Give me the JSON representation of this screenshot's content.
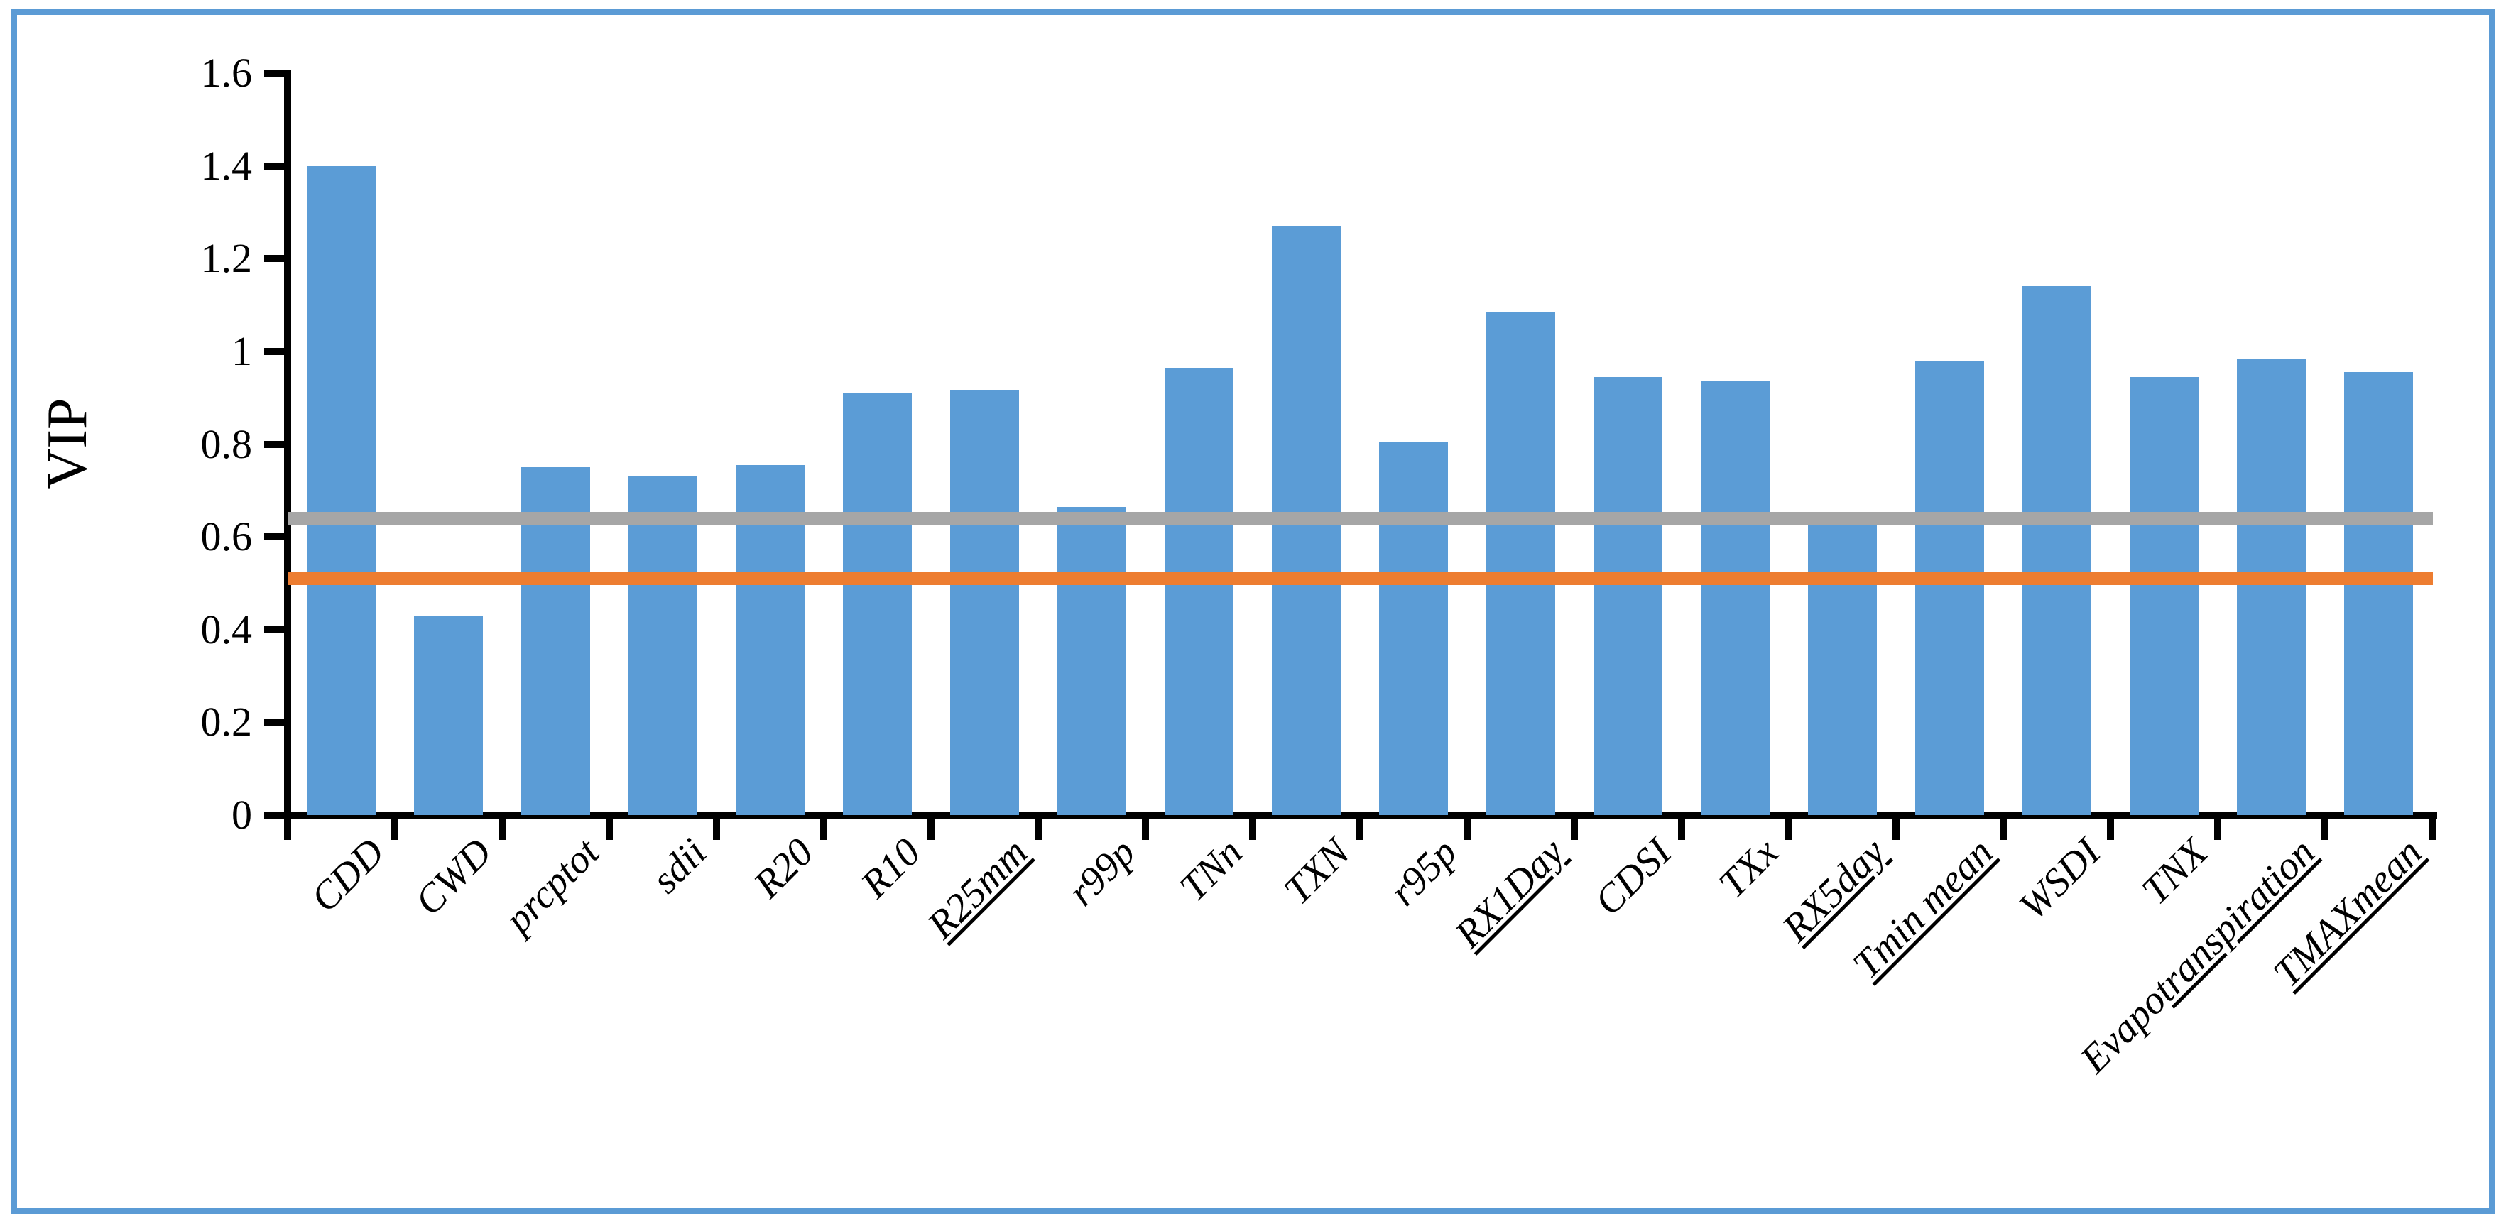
{
  "chart_data": {
    "type": "bar",
    "title": "",
    "ylabel": "VIP",
    "xlabel": "",
    "ylim": [
      0,
      1.6
    ],
    "grid": "off",
    "legend": "none",
    "yticks": [
      {
        "v": 0,
        "label": "0"
      },
      {
        "v": 0.2,
        "label": "0.2"
      },
      {
        "v": 0.4,
        "label": "0.4"
      },
      {
        "v": 0.6,
        "label": "0.6"
      },
      {
        "v": 0.8,
        "label": "0.8"
      },
      {
        "v": 1,
        "label": "1"
      },
      {
        "v": 1.2,
        "label": "1.2"
      },
      {
        "v": 1.4,
        "label": "1.4"
      },
      {
        "v": 1.6,
        "label": "1.6"
      }
    ],
    "categories": [
      {
        "label": "CDD",
        "value": 1.4,
        "underline_start": -1
      },
      {
        "label": "CWD",
        "value": 0.43,
        "underline_start": -1
      },
      {
        "label": "prcptot",
        "value": 0.75,
        "underline_start": -1
      },
      {
        "label": "sdii",
        "value": 0.73,
        "underline_start": -1
      },
      {
        "label": "R20",
        "value": 0.755,
        "underline_start": -1
      },
      {
        "label": "R10",
        "value": 0.91,
        "underline_start": -1
      },
      {
        "label": "R25mm",
        "value": 0.915,
        "underline_start": 0
      },
      {
        "label": "r99p",
        "value": 0.665,
        "underline_start": -1
      },
      {
        "label": "TNn",
        "value": 0.965,
        "underline_start": -1
      },
      {
        "label": "TXN",
        "value": 1.27,
        "underline_start": -1
      },
      {
        "label": "r95p",
        "value": 0.805,
        "underline_start": -1
      },
      {
        "label": "RX1Day",
        "value": 1.085,
        "underline_start": 0
      },
      {
        "label": "CDSI",
        "value": 0.945,
        "underline_start": -1
      },
      {
        "label": "TXx",
        "value": 0.935,
        "underline_start": -1
      },
      {
        "label": "RX5day",
        "value": 0.635,
        "underline_start": 0
      },
      {
        "label": "Tmin mean",
        "value": 0.98,
        "underline_start": 0
      },
      {
        "label": "WSDI",
        "value": 1.14,
        "underline_start": -1
      },
      {
        "label": "TNX",
        "value": 0.945,
        "underline_start": -1
      },
      {
        "label": "Evapotranspiration",
        "value": 0.985,
        "underline_start": 5
      },
      {
        "label": "TMAXmean",
        "value": 0.955,
        "underline_start": 0
      }
    ],
    "reference_lines": [
      {
        "name": "gray-threshold",
        "value": 0.64,
        "color": "#A6A6A6"
      },
      {
        "name": "orange-threshold",
        "value": 0.51,
        "color": "#ED7D31"
      }
    ],
    "colors": {
      "bar": "#5B9CD6",
      "axis": "#000000",
      "frame_border": "#5B9BD5",
      "background": "#FFFFFF"
    }
  }
}
